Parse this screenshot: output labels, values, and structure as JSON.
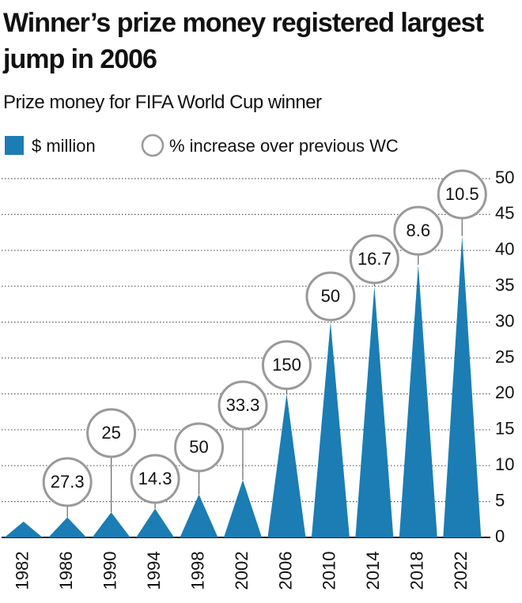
{
  "chart_data": {
    "type": "spike",
    "title": "Winner’s prize money registered largest jump in 2006",
    "subtitle": "Prize money for FIFA World Cup winner",
    "categories": [
      "1982",
      "1986",
      "1990",
      "1994",
      "1998",
      "2002",
      "2006",
      "2010",
      "2014",
      "2018",
      "2022"
    ],
    "series": [
      {
        "name": "$ million",
        "color": "#1b7db3",
        "values": [
          2.2,
          2.8,
          3.5,
          4,
          6,
          8,
          20,
          30,
          35,
          38,
          42
        ]
      }
    ],
    "annotations": {
      "name": "% increase over previous WC",
      "values": [
        null,
        27.3,
        25,
        14.3,
        50,
        33.3,
        150,
        50,
        16.7,
        8.6,
        10.5
      ]
    },
    "ylim": [
      0,
      50
    ],
    "yticks": [
      0,
      5,
      10,
      15,
      20,
      25,
      30,
      35,
      40,
      45,
      50
    ],
    "grid": true
  }
}
